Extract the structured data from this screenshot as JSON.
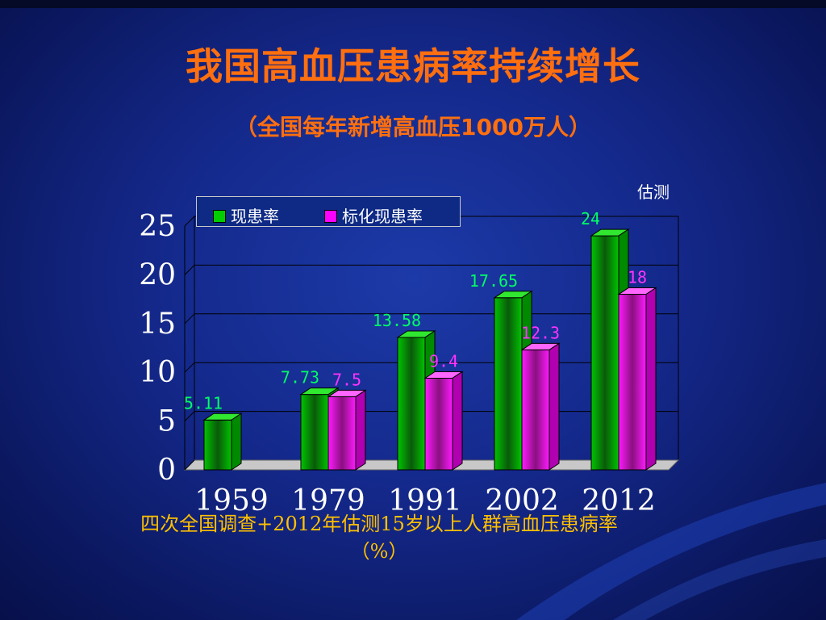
{
  "slide": {
    "title": "我国高血压患病率持续增长",
    "subtitle": "（全国每年新增高血压1000万人）",
    "estimate_note": "估测",
    "footnote_line1": "四次全国调查+2012年估测15岁以上人群高血压患病率",
    "footnote_line2": "（%）"
  },
  "colors": {
    "title": "#ff6f0f",
    "footnote": "#ffc000",
    "series_green": "#00cc00",
    "series_magenta": "#ff00ff",
    "label_green": "#00ff66",
    "label_magenta": "#ff33ff"
  },
  "chart_data": {
    "type": "bar",
    "categories": [
      "1959",
      "1979",
      "1991",
      "2002",
      "2012"
    ],
    "series": [
      {
        "name": "现患率",
        "values": [
          5.11,
          7.73,
          13.58,
          17.65,
          24
        ],
        "labels": [
          "5.11",
          "7.73",
          "13.58",
          "17.65",
          "24"
        ]
      },
      {
        "name": "标化现患率",
        "values": [
          null,
          7.5,
          9.4,
          12.3,
          18
        ],
        "labels": [
          "",
          "7.5",
          "9.4",
          "12.3",
          "18"
        ]
      }
    ],
    "ylim": [
      0,
      25
    ],
    "yticks": [
      "0",
      "5",
      "10",
      "15",
      "20",
      "25"
    ],
    "grid": true,
    "legend_position": "top-left",
    "style": "3d-clustered-column"
  }
}
